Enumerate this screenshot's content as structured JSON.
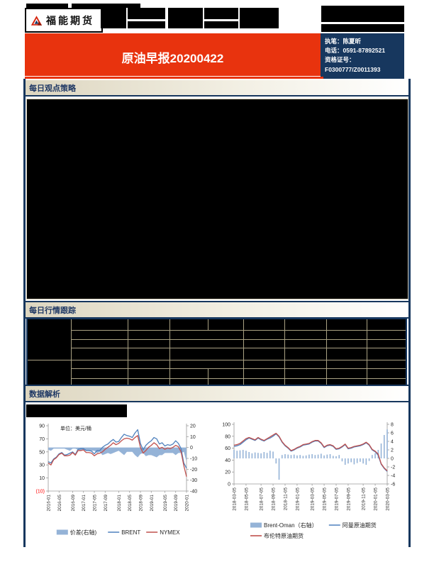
{
  "masthead": {
    "logo_text": "福能期货",
    "logo_icon": "funeng-triangle-logo"
  },
  "banner": {
    "title": "原油早报20200422"
  },
  "contact": {
    "lines": [
      "执笔：陈夏昕",
      "电话：0591-87892521",
      "资格证号：",
      "F0300777/Z0011393"
    ]
  },
  "sections": {
    "daily_view": "每日观点策略",
    "daily_market": "每日行情跟踪",
    "data_analysis": "数据解析"
  },
  "colors": {
    "accent_red": "#e8330e",
    "navy": "#17375e",
    "section_text": "#1f3864",
    "table_grid": "#a9a183",
    "area_blue": "#95b3d7",
    "line_blue": "#4f81bd",
    "line_red": "#c0504d"
  },
  "chart_data": [
    {
      "type": "line",
      "subtype": "dual-axis line + area combo",
      "note": "单位：美元/桶",
      "x_tick_labels": [
        "2016-01",
        "2016-05",
        "2016-09",
        "2017-01",
        "2017-05",
        "2017-09",
        "2018-01",
        "2018-05",
        "2018-09",
        "2019-01",
        "2019-05",
        "2019-09",
        "2020-01"
      ],
      "axes": {
        "left": {
          "min": -10,
          "max": 90,
          "ticks": [
            90,
            70,
            50,
            30,
            10,
            -10
          ],
          "neg_paren": true
        },
        "right": {
          "min": -40,
          "max": 20,
          "ticks": [
            20,
            10,
            0,
            -10,
            -20,
            -30,
            -40
          ]
        }
      },
      "legend_position": "bottom",
      "grid": false,
      "series": [
        {
          "name": "价差(右轴)",
          "type": "area",
          "axis": "right",
          "color": "#95b3d7",
          "values": [
            -2,
            -3,
            -1,
            -1,
            -1,
            -1,
            -1,
            -2,
            -3,
            -1,
            -1,
            -2,
            -3,
            -2,
            -3,
            -3,
            -3,
            -3,
            -5,
            -4,
            -7,
            -6,
            -5,
            -6,
            -5,
            -4,
            -3,
            -5,
            -7,
            -4,
            -4,
            -4,
            -7,
            -9,
            -6,
            -5,
            -8,
            -7,
            -7,
            -8,
            -9,
            -7,
            -7,
            -5,
            -5,
            -5,
            -5,
            -7,
            -5,
            -5,
            -4,
            -13
          ]
        },
        {
          "name": "BRENT",
          "type": "line",
          "axis": "left",
          "color": "#4f81bd",
          "values": [
            35,
            33,
            39,
            42,
            47,
            49,
            45,
            46,
            48,
            50,
            46,
            54,
            55,
            55,
            52,
            52,
            51,
            47,
            52,
            52,
            57,
            60,
            62,
            66,
            69,
            65,
            66,
            72,
            77,
            75,
            74,
            72,
            79,
            84,
            63,
            53,
            60,
            64,
            67,
            72,
            70,
            62,
            64,
            59,
            61,
            60,
            62,
            67,
            63,
            55,
            33,
            25
          ]
        },
        {
          "name": "NYMEX",
          "type": "line",
          "axis": "left",
          "color": "#c0504d",
          "values": [
            33,
            30,
            38,
            41,
            46,
            48,
            44,
            44,
            45,
            49,
            45,
            52,
            52,
            53,
            49,
            49,
            48,
            44,
            47,
            48,
            50,
            54,
            57,
            60,
            64,
            61,
            63,
            67,
            70,
            71,
            70,
            68,
            72,
            75,
            57,
            48,
            52,
            57,
            60,
            64,
            61,
            55,
            57,
            54,
            56,
            55,
            57,
            60,
            58,
            50,
            29,
            12
          ]
        }
      ]
    },
    {
      "type": "line",
      "subtype": "dual-axis line + bar combo",
      "x_tick_labels": [
        "2018-03-05",
        "2018-05-05",
        "2018-07-05",
        "2018-09-05",
        "2018-11-05",
        "2019-01-05",
        "2019-03-05",
        "2019-05-05",
        "2019-07-05",
        "2019-09-05",
        "2019-11-05",
        "2020-01-05",
        "2020-03-05"
      ],
      "axes": {
        "left": {
          "min": 0,
          "max": 100,
          "ticks": [
            100,
            80,
            60,
            40,
            20,
            0
          ]
        },
        "right": {
          "min": -6,
          "max": 8,
          "ticks": [
            8,
            6,
            4,
            2,
            0,
            -2,
            -4,
            -6
          ]
        }
      },
      "legend_position": "bottom",
      "grid": false,
      "series": [
        {
          "name": "Brent-Oman（右轴）",
          "type": "bar",
          "axis": "right",
          "color": "#95b3d7",
          "values": [
            2,
            1.8,
            1.9,
            2,
            1.8,
            1.5,
            1.2,
            1.4,
            1.3,
            1.2,
            1.5,
            1.3,
            1.8,
            1.6,
            -1.2,
            -5,
            0.8,
            1,
            0.9,
            0.8,
            0.9,
            0.7,
            0.8,
            0.6,
            0.7,
            0.9,
            1,
            0.8,
            0.9,
            1.1,
            0.7,
            0.9,
            1,
            0.6,
            0.5,
            0.8,
            -0.7,
            -1.5,
            -1.2,
            -0.9,
            -1.4,
            -1.1,
            -0.8,
            -1.2,
            -1.5,
            -0.6,
            0.8,
            1.2,
            2,
            3.5,
            5.5,
            6.8
          ]
        },
        {
          "name": "阿曼原油期货",
          "type": "line",
          "axis": "left",
          "color": "#4f81bd",
          "values": [
            63,
            64,
            66,
            70,
            74,
            77,
            75,
            73,
            77,
            74,
            72,
            75,
            77,
            80,
            84,
            79,
            70,
            64,
            60,
            55,
            57,
            60,
            62,
            65,
            66,
            67,
            70,
            72,
            72,
            68,
            61,
            64,
            65,
            63,
            58,
            59,
            62,
            66,
            59,
            60,
            62,
            63,
            64,
            66,
            69,
            65,
            57,
            54,
            48,
            33,
            26,
            21
          ]
        },
        {
          "name": "布伦特原油期货",
          "type": "line",
          "axis": "left",
          "color": "#c0504d",
          "values": [
            65,
            66,
            68,
            72,
            76,
            78,
            76,
            74,
            78,
            75,
            73,
            76,
            79,
            82,
            85,
            80,
            71,
            65,
            61,
            56,
            58,
            61,
            63,
            66,
            67,
            68,
            71,
            73,
            73,
            69,
            62,
            65,
            66,
            64,
            59,
            60,
            63,
            67,
            60,
            61,
            63,
            64,
            65,
            67,
            70,
            66,
            58,
            55,
            50,
            34,
            27,
            22
          ]
        }
      ]
    }
  ]
}
